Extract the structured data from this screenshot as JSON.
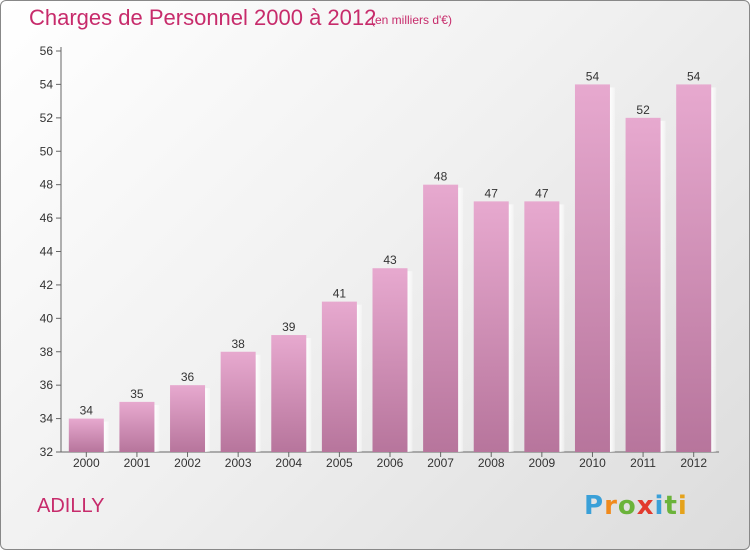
{
  "header": {
    "title": "Charges de Personnel 2000 à 2012",
    "subtitle": "(en milliers d'€)"
  },
  "footer": {
    "commune": "ADILLY",
    "logo_letters": [
      "P",
      "r",
      "o",
      "x",
      "i",
      "t",
      "i"
    ],
    "logo_colors": [
      "#3aa0d8",
      "#f08a1c",
      "#6bb33a",
      "#e23a2e",
      "#3aa0d8",
      "#6bb33a",
      "#e5a21b"
    ]
  },
  "colors": {
    "bar_top": "#e7a9cf",
    "bar_bottom": "#b7759c",
    "accent": "#c72b6b"
  },
  "chart_data": {
    "type": "bar",
    "categories": [
      "2000",
      "2001",
      "2002",
      "2003",
      "2004",
      "2005",
      "2006",
      "2007",
      "2008",
      "2009",
      "2010",
      "2011",
      "2012"
    ],
    "values": [
      34,
      35,
      36,
      38,
      39,
      41,
      43,
      48,
      47,
      47,
      54,
      52,
      54
    ],
    "ylim": [
      32,
      56
    ],
    "yticks": [
      32,
      34,
      36,
      38,
      40,
      42,
      44,
      46,
      48,
      50,
      52,
      54,
      56
    ],
    "grid": false
  }
}
